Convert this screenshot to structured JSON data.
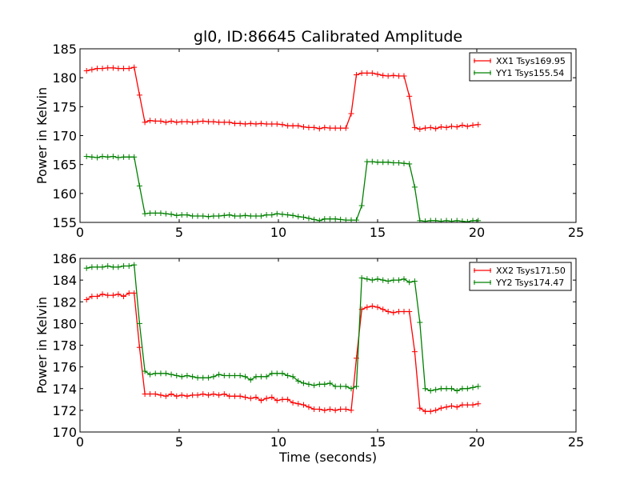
{
  "title": "gl0, ID:86645 Calibrated Amplitude",
  "chart_data": [
    {
      "type": "line",
      "title": "gl0, ID:86645 Calibrated Amplitude",
      "xlabel": "",
      "ylabel": "Power in Kelvin",
      "xlim": [
        0,
        25
      ],
      "ylim": [
        155,
        185
      ],
      "xticks": [
        0,
        5,
        10,
        15,
        20,
        25
      ],
      "yticks": [
        155,
        160,
        165,
        170,
        175,
        180,
        185
      ],
      "grid": false,
      "legend_position": "top-right",
      "x": [
        0.33,
        0.6,
        0.87,
        1.13,
        1.4,
        1.67,
        1.93,
        2.2,
        2.47,
        2.73,
        3.0,
        3.27,
        3.53,
        3.8,
        4.07,
        4.33,
        4.6,
        4.87,
        5.13,
        5.4,
        5.67,
        5.93,
        6.2,
        6.47,
        6.73,
        7.0,
        7.27,
        7.53,
        7.8,
        8.07,
        8.33,
        8.6,
        8.87,
        9.13,
        9.4,
        9.67,
        9.93,
        10.2,
        10.47,
        10.73,
        11.0,
        11.27,
        11.53,
        11.8,
        12.07,
        12.33,
        12.6,
        12.87,
        13.13,
        13.4,
        13.67,
        13.93,
        14.2,
        14.47,
        14.73,
        15.0,
        15.27,
        15.53,
        15.8,
        16.07,
        16.33,
        16.6,
        16.87,
        17.13,
        17.4,
        17.67,
        17.93,
        18.2,
        18.47,
        18.73,
        19.0,
        19.27,
        19.53,
        19.8,
        20.07
      ],
      "series": [
        {
          "name": "XX1 Tsys169.95",
          "color": "#ff0000",
          "values": [
            181.2,
            181.4,
            181.6,
            181.6,
            181.7,
            181.7,
            181.6,
            181.6,
            181.6,
            181.8,
            177.0,
            172.3,
            172.6,
            172.5,
            172.5,
            172.3,
            172.5,
            172.3,
            172.4,
            172.4,
            172.3,
            172.4,
            172.5,
            172.4,
            172.4,
            172.3,
            172.3,
            172.3,
            172.1,
            172.1,
            172.0,
            172.1,
            172.0,
            172.1,
            172.0,
            172.0,
            172.0,
            171.9,
            171.7,
            171.7,
            171.7,
            171.5,
            171.4,
            171.4,
            171.2,
            171.4,
            171.3,
            171.3,
            171.3,
            171.3,
            173.8,
            180.5,
            180.8,
            180.8,
            180.8,
            180.6,
            180.4,
            180.3,
            180.4,
            180.3,
            180.3,
            176.8,
            171.4,
            171.1,
            171.3,
            171.4,
            171.2,
            171.5,
            171.4,
            171.6,
            171.5,
            171.8,
            171.6,
            171.8,
            171.9
          ]
        },
        {
          "name": "YY1 Tsys155.54",
          "color": "#008000",
          "values": [
            166.4,
            166.3,
            166.2,
            166.4,
            166.3,
            166.4,
            166.2,
            166.3,
            166.3,
            166.3,
            161.3,
            156.5,
            156.6,
            156.6,
            156.6,
            156.5,
            156.4,
            156.2,
            156.3,
            156.3,
            156.1,
            156.1,
            156.1,
            156.0,
            156.1,
            156.1,
            156.2,
            156.3,
            156.1,
            156.1,
            156.2,
            156.1,
            156.1,
            156.1,
            156.3,
            156.3,
            156.5,
            156.4,
            156.3,
            156.2,
            156.0,
            155.9,
            155.7,
            155.5,
            155.3,
            155.6,
            155.6,
            155.6,
            155.5,
            155.4,
            155.4,
            155.4,
            157.9,
            165.5,
            165.5,
            165.4,
            165.4,
            165.4,
            165.3,
            165.3,
            165.2,
            165.1,
            161.1,
            155.3,
            155.2,
            155.3,
            155.3,
            155.2,
            155.3,
            155.2,
            155.3,
            155.2,
            155.1,
            155.3,
            155.3
          ]
        }
      ]
    },
    {
      "type": "line",
      "xlabel": "Time (seconds)",
      "ylabel": "Power in Kelvin",
      "xlim": [
        0,
        25
      ],
      "ylim": [
        170,
        186
      ],
      "xticks": [
        0,
        5,
        10,
        15,
        20,
        25
      ],
      "yticks": [
        170,
        172,
        174,
        176,
        178,
        180,
        182,
        184,
        186
      ],
      "grid": false,
      "legend_position": "top-right",
      "x": [
        0.33,
        0.6,
        0.87,
        1.13,
        1.4,
        1.67,
        1.93,
        2.2,
        2.47,
        2.73,
        3.0,
        3.27,
        3.53,
        3.8,
        4.07,
        4.33,
        4.6,
        4.87,
        5.13,
        5.4,
        5.67,
        5.93,
        6.2,
        6.47,
        6.73,
        7.0,
        7.27,
        7.53,
        7.8,
        8.07,
        8.33,
        8.6,
        8.87,
        9.13,
        9.4,
        9.67,
        9.93,
        10.2,
        10.47,
        10.73,
        11.0,
        11.27,
        11.53,
        11.8,
        12.07,
        12.33,
        12.6,
        12.87,
        13.13,
        13.4,
        13.67,
        13.93,
        14.2,
        14.47,
        14.73,
        15.0,
        15.27,
        15.53,
        15.8,
        16.07,
        16.33,
        16.6,
        16.87,
        17.13,
        17.4,
        17.67,
        17.93,
        18.2,
        18.47,
        18.73,
        19.0,
        19.27,
        19.53,
        19.8,
        20.07
      ],
      "series": [
        {
          "name": "XX2 Tsys171.50",
          "color": "#ff0000",
          "values": [
            182.2,
            182.5,
            182.5,
            182.7,
            182.6,
            182.6,
            182.7,
            182.5,
            182.8,
            182.8,
            177.8,
            173.5,
            173.5,
            173.5,
            173.4,
            173.3,
            173.5,
            173.3,
            173.4,
            173.3,
            173.4,
            173.4,
            173.5,
            173.4,
            173.5,
            173.4,
            173.5,
            173.3,
            173.3,
            173.3,
            173.2,
            173.1,
            173.2,
            172.9,
            173.1,
            173.2,
            172.9,
            173.0,
            173.0,
            172.7,
            172.6,
            172.5,
            172.3,
            172.1,
            172.1,
            172.0,
            172.1,
            172.0,
            172.1,
            172.1,
            172.0,
            176.8,
            181.3,
            181.5,
            181.6,
            181.5,
            181.3,
            181.1,
            181.0,
            181.1,
            181.1,
            181.1,
            177.4,
            172.2,
            171.9,
            171.9,
            172.0,
            172.2,
            172.3,
            172.4,
            172.3,
            172.5,
            172.5,
            172.5,
            172.6
          ]
        },
        {
          "name": "YY2 Tsys174.47",
          "color": "#008000",
          "values": [
            185.1,
            185.2,
            185.2,
            185.2,
            185.3,
            185.2,
            185.2,
            185.3,
            185.3,
            185.4,
            180.0,
            175.6,
            175.3,
            175.4,
            175.4,
            175.4,
            175.3,
            175.2,
            175.1,
            175.2,
            175.1,
            175.0,
            175.0,
            175.0,
            175.1,
            175.3,
            175.2,
            175.2,
            175.2,
            175.2,
            175.1,
            174.8,
            175.1,
            175.1,
            175.1,
            175.4,
            175.4,
            175.4,
            175.2,
            175.1,
            174.7,
            174.5,
            174.4,
            174.3,
            174.4,
            174.4,
            174.5,
            174.2,
            174.2,
            174.2,
            174.0,
            174.2,
            184.2,
            184.1,
            184.0,
            184.1,
            184.0,
            183.9,
            184.0,
            184.0,
            184.1,
            183.8,
            183.9,
            180.1,
            174.0,
            173.8,
            173.9,
            174.0,
            174.0,
            174.0,
            173.8,
            174.0,
            174.0,
            174.1,
            174.2
          ]
        }
      ]
    }
  ]
}
